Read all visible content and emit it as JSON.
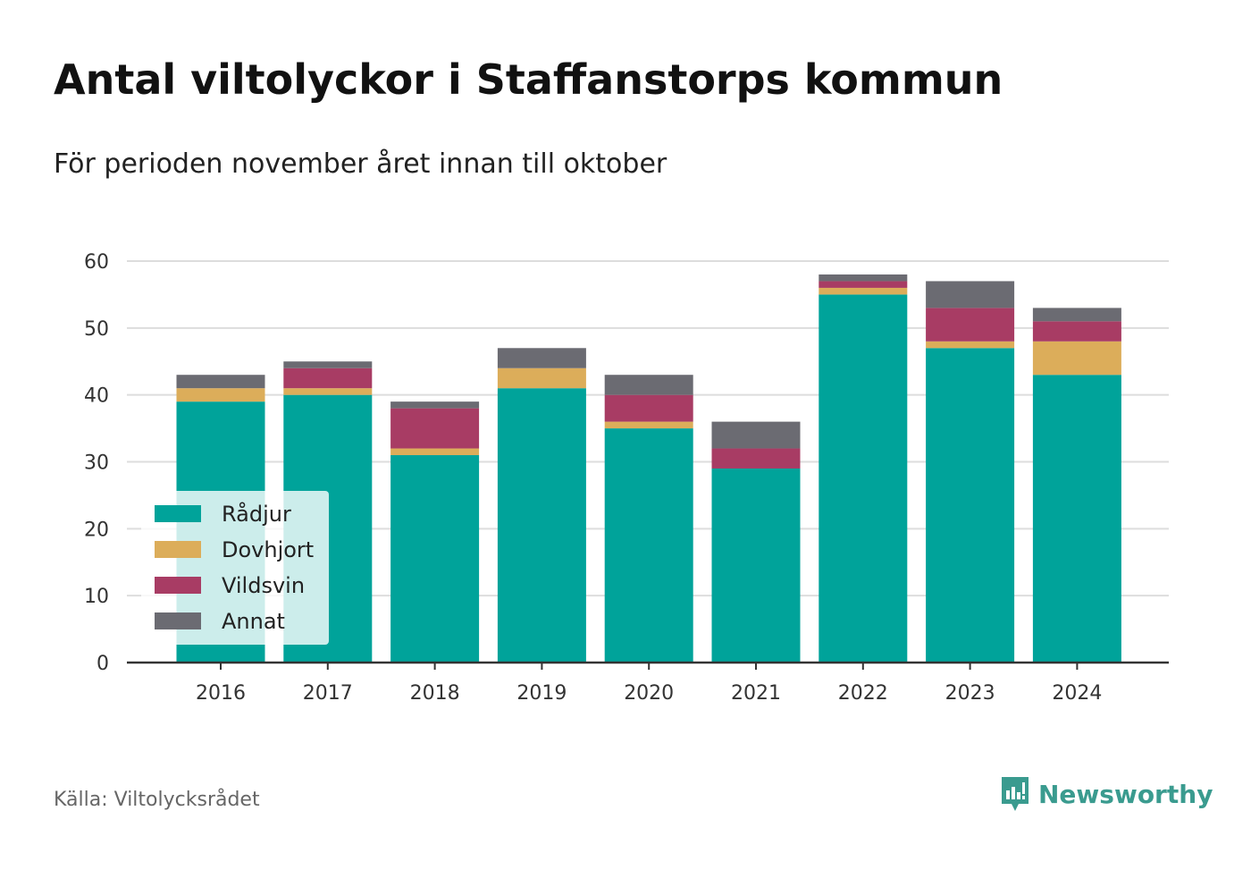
{
  "title": "Antal viltolyckor i Staffanstorps kommun",
  "subtitle": "För perioden november året innan till oktober",
  "source": "Källa: Viltolycksrådet",
  "brand": "Newsworthy",
  "colors": {
    "Rådjur": "#00a39a",
    "Dovhjort": "#dcad5a",
    "Vildsvin": "#a83c64",
    "Annat": "#6b6b72",
    "grid": "#dddddd",
    "axis": "#333333"
  },
  "chart_data": {
    "type": "bar",
    "stacked": true,
    "categories": [
      "2016",
      "2017",
      "2018",
      "2019",
      "2020",
      "2021",
      "2022",
      "2023",
      "2024"
    ],
    "series": [
      {
        "name": "Rådjur",
        "values": [
          39,
          40,
          31,
          41,
          35,
          29,
          55,
          47,
          43
        ]
      },
      {
        "name": "Dovhjort",
        "values": [
          2,
          1,
          1,
          3,
          1,
          0,
          1,
          1,
          5
        ]
      },
      {
        "name": "Vildsvin",
        "values": [
          0,
          3,
          6,
          0,
          4,
          3,
          1,
          5,
          3
        ]
      },
      {
        "name": "Annat",
        "values": [
          2,
          1,
          1,
          3,
          3,
          4,
          1,
          4,
          2
        ]
      }
    ],
    "yticks": [
      0,
      10,
      20,
      30,
      40,
      50,
      60
    ],
    "ylim": [
      0,
      60
    ],
    "grid": true,
    "legend_position": "bottom-left"
  }
}
